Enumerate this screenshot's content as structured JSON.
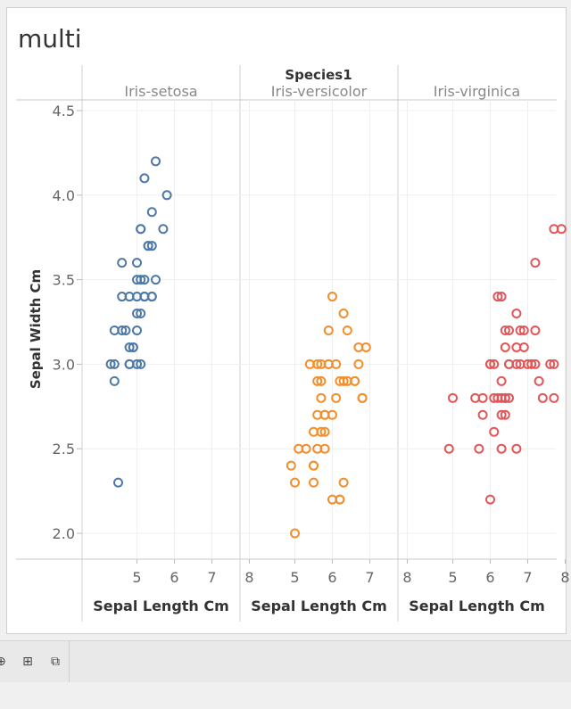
{
  "sheet": {
    "title": "multi"
  },
  "chart_data": {
    "type": "scatter",
    "header_title": "Species1",
    "ylabel": "Sepal Width Cm",
    "xlabel": "Sepal Length Cm",
    "xlim": [
      4.1,
      8.2
    ],
    "ylim": [
      1.85,
      4.55
    ],
    "xticks": [
      5,
      6,
      7,
      8
    ],
    "yticks": [
      2.0,
      2.5,
      3.0,
      3.5,
      4.0,
      4.5
    ],
    "ytick_labels": [
      "2.0",
      "2.5",
      "3.0",
      "3.5",
      "4.0",
      "4.5"
    ],
    "grid": true,
    "marker": "hollow-circle",
    "panels": [
      {
        "name": "Iris-setosa",
        "color": "#4e79a7",
        "x": [
          5.8,
          5.5,
          5.2,
          5.4,
          5.7,
          5.1,
          5.4,
          5.3,
          5.2,
          5.4,
          5.1,
          4.6,
          5.0,
          4.9,
          5.0,
          5.2,
          5.1,
          5.3,
          5.5,
          4.6,
          4.8,
          5.0,
          5.2,
          5.4,
          5.1,
          5.0,
          5.1,
          4.6,
          4.7,
          4.8,
          4.4,
          4.8,
          4.8,
          4.9,
          5.0,
          4.3,
          4.4,
          4.5,
          5.0,
          4.4
        ],
        "y": [
          4.0,
          4.2,
          4.1,
          3.9,
          3.8,
          3.8,
          3.7,
          3.7,
          3.5,
          3.4,
          3.5,
          3.6,
          3.6,
          3.1,
          3.4,
          3.4,
          3.3,
          3.7,
          3.5,
          3.4,
          3.4,
          3.3,
          3.4,
          3.4,
          3.0,
          3.5,
          3.8,
          3.2,
          3.2,
          3.1,
          3.2,
          3.0,
          3.0,
          3.1,
          3.0,
          3.0,
          2.9,
          2.3,
          3.2,
          3.0
        ]
      },
      {
        "name": "Iris-versicolor",
        "color": "#f28e2b",
        "x": [
          6.0,
          6.3,
          5.9,
          6.7,
          6.9,
          6.8,
          6.1,
          6.3,
          5.7,
          5.6,
          5.5,
          5.4,
          5.5,
          5.9,
          5.8,
          5.6,
          5.7,
          6.1,
          6.2,
          6.6,
          6.7,
          6.4,
          5.8,
          5.7,
          6.0,
          6.4,
          5.5,
          5.6,
          5.8,
          6.6,
          6.8,
          5.8,
          5.3,
          6.2,
          6.3,
          5.7,
          5.5,
          4.9,
          5.0,
          5.0,
          6.2,
          6.0,
          5.1,
          5.6,
          5.9
        ],
        "y": [
          3.4,
          3.3,
          3.2,
          3.1,
          3.1,
          2.8,
          3.0,
          2.9,
          2.9,
          2.9,
          2.4,
          3.0,
          2.6,
          3.0,
          2.7,
          2.7,
          2.8,
          2.8,
          2.9,
          2.9,
          3.0,
          2.9,
          2.6,
          2.6,
          2.7,
          3.2,
          2.4,
          2.5,
          2.5,
          2.9,
          2.8,
          2.7,
          2.5,
          2.2,
          2.3,
          3.0,
          2.3,
          2.4,
          2.3,
          2.0,
          2.2,
          2.2,
          2.5,
          3.0,
          3.0
        ]
      },
      {
        "name": "Iris-virginica",
        "color": "#e15759",
        "x": [
          7.7,
          7.9,
          7.2,
          6.3,
          6.4,
          6.5,
          6.7,
          6.9,
          6.8,
          7.2,
          6.4,
          6.5,
          6.7,
          6.5,
          6.0,
          6.1,
          6.3,
          6.4,
          7.0,
          7.1,
          7.2,
          7.3,
          7.6,
          7.7,
          6.2,
          6.3,
          6.9,
          7.4,
          6.4,
          6.5,
          5.6,
          5.8,
          6.1,
          6.3,
          6.7,
          5.7,
          6.3,
          6.4,
          6.8,
          6.7,
          6.0,
          6.2,
          4.9,
          5.0,
          7.7,
          6.1,
          5.8,
          6.0
        ],
        "y": [
          3.8,
          3.8,
          3.6,
          3.4,
          3.2,
          3.2,
          3.3,
          3.2,
          3.2,
          3.2,
          3.1,
          3.0,
          3.0,
          3.0,
          3.0,
          2.6,
          2.9,
          2.8,
          3.0,
          3.0,
          3.0,
          2.9,
          3.0,
          3.0,
          2.8,
          2.8,
          3.1,
          2.8,
          2.7,
          2.8,
          2.8,
          2.7,
          3.0,
          2.5,
          2.5,
          2.5,
          2.7,
          2.8,
          3.0,
          3.1,
          2.2,
          3.4,
          2.5,
          2.8,
          2.8,
          2.8,
          2.8,
          3.0
        ]
      }
    ]
  },
  "toolbar": {
    "buttons": [
      {
        "name": "new-worksheet-button",
        "glyph": "⊕"
      },
      {
        "name": "new-dashboard-button",
        "glyph": "⊞"
      },
      {
        "name": "new-story-button",
        "glyph": "⧉"
      }
    ]
  }
}
